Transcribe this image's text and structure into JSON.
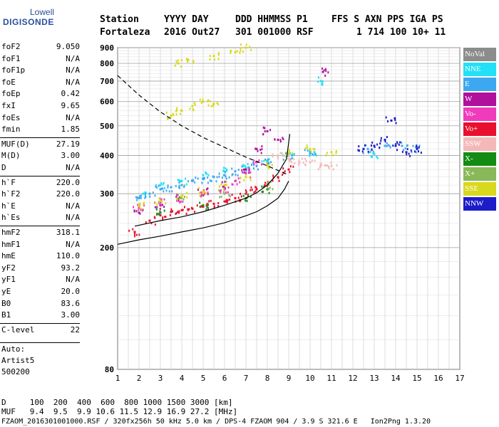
{
  "logo": {
    "line1": "Lowell",
    "line2": "DIGISONDE"
  },
  "header": {
    "line1": [
      "Station",
      "YYYY DAY",
      "DDD HHMMSS P1",
      "FFS S AXN PPS IGA PS"
    ],
    "line2": [
      "Fortaleza",
      "2016 Out27",
      "301 001000 RSF",
      "1 714 100 10+ 11"
    ]
  },
  "params": [
    {
      "name": "foF2",
      "value": "9.050"
    },
    {
      "name": "foF1",
      "value": "N/A"
    },
    {
      "name": "foF1p",
      "value": "N/A"
    },
    {
      "name": "foE",
      "value": "N/A"
    },
    {
      "name": "foEp",
      "value": "0.42"
    },
    {
      "name": "fxI",
      "value": "9.65"
    },
    {
      "name": "foEs",
      "value": "N/A"
    },
    {
      "name": "fmin",
      "value": "1.85"
    },
    {
      "name": "MUF(D)",
      "value": "27.19"
    },
    {
      "name": "M(D)",
      "value": "3.00"
    },
    {
      "name": "D",
      "value": "N/A"
    },
    {
      "name": "h`F",
      "value": "220.0"
    },
    {
      "name": "h`F2",
      "value": "220.0"
    },
    {
      "name": "h`E",
      "value": "N/A"
    },
    {
      "name": "h`Es",
      "value": "N/A"
    },
    {
      "name": "hmF2",
      "value": "318.1"
    },
    {
      "name": "hmF1",
      "value": "N/A"
    },
    {
      "name": "hmE",
      "value": "110.0"
    },
    {
      "name": "yF2",
      "value": "93.2"
    },
    {
      "name": "yF1",
      "value": "N/A"
    },
    {
      "name": "yE",
      "value": "20.0"
    },
    {
      "name": "B0",
      "value": "83.6"
    },
    {
      "name": "B1",
      "value": "3.00"
    },
    {
      "name": "C-level",
      "value": "22"
    }
  ],
  "scaling": {
    "line1": "Auto:",
    "line2": "Artist5",
    "line3": "500200"
  },
  "footer": {
    "d_row": "D     100  200  400  600  800 1000 1500 3000 [km]",
    "muf_row": "MUF   9.4  9.5  9.9 10.6 11.5 12.9 16.9 27.2 [MHz]",
    "file_row": "FZAOM_2016301001000.RSF / 320fx256h 50 kHz 5.0 km / DPS-4 FZAOM 904 / 3.9 S 321.6 E   Ion2Png 1.3.20"
  },
  "legend": [
    {
      "label": "NoVal",
      "color": "#8c8c8c"
    },
    {
      "label": "NNE",
      "color": "#22e0f5"
    },
    {
      "label": "E",
      "color": "#3ca8f0"
    },
    {
      "label": "W",
      "color": "#b0109c"
    },
    {
      "label": "Vo-",
      "color": "#f03cbc"
    },
    {
      "label": "Vo+",
      "color": "#e8102c"
    },
    {
      "label": "SSW",
      "color": "#f4b8b8"
    },
    {
      "label": "X-",
      "color": "#148c14"
    },
    {
      "label": "X+",
      "color": "#88b858"
    },
    {
      "label": "SSE",
      "color": "#d8d81c"
    },
    {
      "label": "NNW",
      "color": "#1c1cc8"
    }
  ],
  "chart_data": {
    "type": "scatter",
    "xlim": [
      1,
      17
    ],
    "ylim": [
      80,
      900
    ],
    "yscale": "log",
    "x_ticks": [
      1,
      2,
      3,
      4,
      5,
      6,
      7,
      8,
      9,
      10,
      11,
      12,
      13,
      14,
      15,
      16,
      17
    ],
    "y_ticks": [
      80,
      200,
      300,
      400,
      500,
      600,
      700,
      800,
      900
    ],
    "grid": true,
    "series": [
      {
        "name": "NNE",
        "color": "#22e0f5",
        "points": [
          [
            2.2,
            300
          ],
          [
            3.0,
            320
          ],
          [
            4.0,
            330
          ],
          [
            5.0,
            345
          ],
          [
            6.0,
            355
          ],
          [
            7.0,
            365
          ],
          [
            8.0,
            385
          ],
          [
            9.0,
            405
          ],
          [
            10.2,
            410
          ],
          [
            13.0,
            405
          ],
          [
            10.5,
            700
          ]
        ]
      },
      {
        "name": "E",
        "color": "#3ca8f0",
        "points": [
          [
            2.0,
            290
          ],
          [
            2.5,
            300
          ],
          [
            3.0,
            310
          ],
          [
            3.5,
            315
          ],
          [
            4.0,
            320
          ],
          [
            4.5,
            330
          ],
          [
            5.0,
            335
          ],
          [
            5.5,
            340
          ],
          [
            6.0,
            345
          ],
          [
            6.5,
            355
          ],
          [
            7.0,
            360
          ],
          [
            7.5,
            370
          ],
          [
            8.0,
            380
          ],
          [
            9.0,
            400
          ],
          [
            10.0,
            410
          ],
          [
            12.7,
            420
          ],
          [
            13.5,
            430
          ],
          [
            14.3,
            430
          ],
          [
            15.0,
            420
          ]
        ]
      },
      {
        "name": "W",
        "color": "#b0109c",
        "points": [
          [
            2.0,
            260
          ],
          [
            3.0,
            275
          ],
          [
            4.0,
            290
          ],
          [
            5.0,
            305
          ],
          [
            6.0,
            320
          ],
          [
            7.0,
            360
          ],
          [
            7.5,
            420
          ],
          [
            8.0,
            480
          ],
          [
            8.5,
            450
          ],
          [
            10.6,
            750
          ]
        ]
      },
      {
        "name": "Vo-",
        "color": "#f03cbc",
        "points": [
          [
            2.0,
            270
          ],
          [
            3.0,
            280
          ],
          [
            4.0,
            290
          ],
          [
            5.0,
            300
          ],
          [
            6.0,
            310
          ],
          [
            6.5,
            330
          ],
          [
            7.0,
            350
          ],
          [
            7.5,
            380
          ]
        ]
      },
      {
        "name": "Vo+",
        "color": "#e8102c",
        "points": [
          [
            1.8,
            225
          ],
          [
            2.5,
            245
          ],
          [
            3.0,
            255
          ],
          [
            3.5,
            262
          ],
          [
            4.0,
            265
          ],
          [
            4.5,
            268
          ],
          [
            5.0,
            272
          ],
          [
            5.5,
            278
          ],
          [
            6.0,
            283
          ],
          [
            6.5,
            290
          ],
          [
            7.0,
            300
          ],
          [
            7.5,
            310
          ],
          [
            8.0,
            322
          ],
          [
            8.5,
            340
          ],
          [
            9.0,
            360
          ]
        ]
      },
      {
        "name": "SSW",
        "color": "#f4b8b8",
        "points": [
          [
            8.5,
            400
          ],
          [
            9.0,
            390
          ],
          [
            9.5,
            380
          ],
          [
            10.0,
            380
          ],
          [
            10.5,
            370
          ],
          [
            11.0,
            370
          ]
        ]
      },
      {
        "name": "X-",
        "color": "#148c14",
        "points": [
          [
            3.0,
            260
          ],
          [
            5.0,
            275
          ],
          [
            7.0,
            290
          ],
          [
            8.0,
            310
          ]
        ]
      },
      {
        "name": "X+",
        "color": "#88b858",
        "points": [
          [
            4.0,
            290
          ],
          [
            6.0,
            300
          ],
          [
            8.0,
            320
          ]
        ]
      },
      {
        "name": "SSE",
        "color": "#d8d81c",
        "points": [
          [
            2.0,
            275
          ],
          [
            3.0,
            285
          ],
          [
            4.0,
            295
          ],
          [
            5.0,
            305
          ],
          [
            6.0,
            320
          ],
          [
            7.0,
            340
          ],
          [
            8.0,
            370
          ],
          [
            9.0,
            410
          ],
          [
            10.0,
            420
          ],
          [
            11.0,
            410
          ],
          [
            3.5,
            540
          ],
          [
            4.0,
            560
          ],
          [
            4.5,
            580
          ],
          [
            5.0,
            600
          ],
          [
            5.5,
            590
          ],
          [
            3.8,
            800
          ],
          [
            4.3,
            820
          ],
          [
            5.5,
            845
          ],
          [
            6.5,
            870
          ],
          [
            7.0,
            900
          ]
        ]
      },
      {
        "name": "NNW",
        "color": "#1c1cc8",
        "points": [
          [
            12.5,
            420
          ],
          [
            13.0,
            430
          ],
          [
            13.5,
            450
          ],
          [
            14.0,
            430
          ],
          [
            14.5,
            410
          ],
          [
            15.0,
            420
          ],
          [
            13.8,
            520
          ]
        ]
      }
    ],
    "traces": [
      {
        "style": "dashed",
        "points": [
          [
            1.0,
            730
          ],
          [
            2.0,
            630
          ],
          [
            3.0,
            555
          ],
          [
            4.0,
            500
          ],
          [
            5.0,
            458
          ],
          [
            6.0,
            425
          ],
          [
            7.0,
            395
          ],
          [
            8.0,
            370
          ],
          [
            9.0,
            345
          ]
        ]
      },
      {
        "style": "solid",
        "points": [
          [
            1.0,
            205
          ],
          [
            2.0,
            212
          ],
          [
            3.0,
            218
          ],
          [
            4.0,
            225
          ],
          [
            5.0,
            232
          ],
          [
            6.0,
            241
          ],
          [
            7.0,
            254
          ],
          [
            7.5,
            262
          ],
          [
            8.0,
            274
          ],
          [
            8.5,
            290
          ],
          [
            8.8,
            310
          ],
          [
            9.0,
            330
          ]
        ]
      },
      {
        "style": "solid",
        "points": [
          [
            1.8,
            235
          ],
          [
            3.0,
            245
          ],
          [
            4.0,
            252
          ],
          [
            5.0,
            262
          ],
          [
            6.0,
            275
          ],
          [
            7.0,
            290
          ],
          [
            7.5,
            302
          ],
          [
            8.0,
            320
          ],
          [
            8.5,
            350
          ],
          [
            8.9,
            390
          ],
          [
            9.05,
            470
          ]
        ]
      }
    ]
  }
}
